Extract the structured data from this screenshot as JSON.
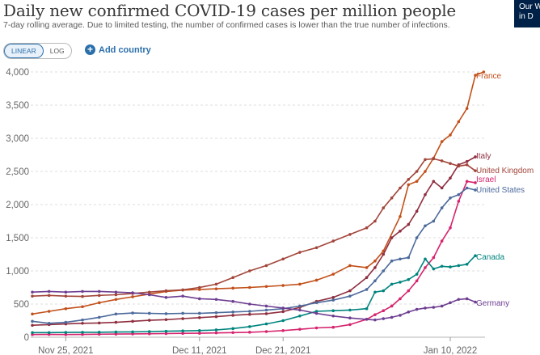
{
  "header": {
    "title": "Daily new confirmed COVID-19 cases per million people",
    "subtitle": "7-day rolling average. Due to limited testing, the number of confirmed cases is lower than the true number of infections.",
    "logo_line1": "Our W",
    "logo_line2": "in D"
  },
  "controls": {
    "linear_label": "LINEAR",
    "log_label": "LOG",
    "add_country_label": "Add country",
    "add_icon": "plus-circle-icon"
  },
  "chart_data": {
    "type": "line",
    "title": "Daily new confirmed COVID-19 cases per million people",
    "ylim": [
      0,
      4000
    ],
    "yticks": [
      0,
      500,
      1000,
      1500,
      2000,
      2500,
      3000,
      3500,
      4000
    ],
    "ytick_labels": [
      "0",
      "500",
      "1,000",
      "1,500",
      "2,000",
      "2,500",
      "3,000",
      "3,500",
      "4,000"
    ],
    "x_start": "2021-11-21",
    "x_end": "2022-01-13",
    "xticks": [
      {
        "date": "2021-11-25",
        "label": "Nov 25, 2021"
      },
      {
        "date": "2021-12-11",
        "label": "Dec 11, 2021"
      },
      {
        "date": "2021-12-21",
        "label": "Dec 21, 2021"
      },
      {
        "date": "2022-01-10",
        "label": "Jan 10, 2022"
      }
    ],
    "grid": true,
    "legend": "end-labels",
    "series": [
      {
        "name": "France",
        "color": "#c2501a",
        "points": [
          [
            "2021-11-21",
            350
          ],
          [
            "2021-11-23",
            390
          ],
          [
            "2021-11-25",
            430
          ],
          [
            "2021-11-27",
            460
          ],
          [
            "2021-11-29",
            520
          ],
          [
            "2021-12-01",
            570
          ],
          [
            "2021-12-03",
            610
          ],
          [
            "2021-12-05",
            650
          ],
          [
            "2021-12-07",
            690
          ],
          [
            "2021-12-09",
            710
          ],
          [
            "2021-12-11",
            720
          ],
          [
            "2021-12-13",
            730
          ],
          [
            "2021-12-15",
            740
          ],
          [
            "2021-12-17",
            750
          ],
          [
            "2021-12-19",
            765
          ],
          [
            "2021-12-21",
            780
          ],
          [
            "2021-12-23",
            800
          ],
          [
            "2021-12-25",
            860
          ],
          [
            "2021-12-27",
            950
          ],
          [
            "2021-12-29",
            1080
          ],
          [
            "2021-12-31",
            1050
          ],
          [
            "2022-01-01",
            1150
          ],
          [
            "2022-01-02",
            1300
          ],
          [
            "2022-01-04",
            1820
          ],
          [
            "2022-01-05",
            2300
          ],
          [
            "2022-01-06",
            2350
          ],
          [
            "2022-01-07",
            2500
          ],
          [
            "2022-01-08",
            2700
          ],
          [
            "2022-01-09",
            2950
          ],
          [
            "2022-01-10",
            3050
          ],
          [
            "2022-01-11",
            3250
          ],
          [
            "2022-01-12",
            3450
          ],
          [
            "2022-01-13",
            3950
          ],
          [
            "2022-01-14",
            4000
          ]
        ]
      },
      {
        "name": "Italy",
        "color": "#8f2e3f",
        "points": [
          [
            "2021-11-21",
            180
          ],
          [
            "2021-11-23",
            190
          ],
          [
            "2021-11-25",
            200
          ],
          [
            "2021-11-27",
            210
          ],
          [
            "2021-11-29",
            215
          ],
          [
            "2021-12-01",
            225
          ],
          [
            "2021-12-03",
            240
          ],
          [
            "2021-12-05",
            255
          ],
          [
            "2021-12-07",
            265
          ],
          [
            "2021-12-09",
            280
          ],
          [
            "2021-12-11",
            295
          ],
          [
            "2021-12-13",
            310
          ],
          [
            "2021-12-15",
            330
          ],
          [
            "2021-12-17",
            345
          ],
          [
            "2021-12-19",
            355
          ],
          [
            "2021-12-21",
            385
          ],
          [
            "2021-12-23",
            450
          ],
          [
            "2021-12-25",
            540
          ],
          [
            "2021-12-27",
            600
          ],
          [
            "2021-12-29",
            700
          ],
          [
            "2021-12-31",
            900
          ],
          [
            "2022-01-01",
            1050
          ],
          [
            "2022-01-02",
            1250
          ],
          [
            "2022-01-03",
            1500
          ],
          [
            "2022-01-04",
            1600
          ],
          [
            "2022-01-05",
            1700
          ],
          [
            "2022-01-06",
            1900
          ],
          [
            "2022-01-07",
            2150
          ],
          [
            "2022-01-08",
            2350
          ],
          [
            "2022-01-09",
            2250
          ],
          [
            "2022-01-10",
            2400
          ],
          [
            "2022-01-11",
            2600
          ],
          [
            "2022-01-12",
            2650
          ],
          [
            "2022-01-13",
            2720
          ]
        ]
      },
      {
        "name": "United Kingdom",
        "color": "#a2453a",
        "points": [
          [
            "2021-11-21",
            620
          ],
          [
            "2021-11-23",
            630
          ],
          [
            "2021-11-25",
            620
          ],
          [
            "2021-11-27",
            615
          ],
          [
            "2021-11-29",
            630
          ],
          [
            "2021-12-01",
            640
          ],
          [
            "2021-12-03",
            660
          ],
          [
            "2021-12-05",
            680
          ],
          [
            "2021-12-07",
            700
          ],
          [
            "2021-12-09",
            715
          ],
          [
            "2021-12-11",
            750
          ],
          [
            "2021-12-13",
            800
          ],
          [
            "2021-12-15",
            900
          ],
          [
            "2021-12-17",
            1000
          ],
          [
            "2021-12-19",
            1080
          ],
          [
            "2021-12-21",
            1180
          ],
          [
            "2021-12-23",
            1280
          ],
          [
            "2021-12-25",
            1350
          ],
          [
            "2021-12-27",
            1450
          ],
          [
            "2021-12-29",
            1550
          ],
          [
            "2021-12-31",
            1650
          ],
          [
            "2022-01-01",
            1750
          ],
          [
            "2022-01-02",
            1950
          ],
          [
            "2022-01-03",
            2100
          ],
          [
            "2022-01-04",
            2250
          ],
          [
            "2022-01-05",
            2380
          ],
          [
            "2022-01-06",
            2500
          ],
          [
            "2022-01-07",
            2680
          ],
          [
            "2022-01-08",
            2690
          ],
          [
            "2022-01-09",
            2660
          ],
          [
            "2022-01-10",
            2620
          ],
          [
            "2022-01-11",
            2580
          ],
          [
            "2022-01-12",
            2600
          ],
          [
            "2022-01-13",
            2510
          ]
        ]
      },
      {
        "name": "Israel",
        "color": "#d6246e",
        "points": [
          [
            "2021-11-21",
            40
          ],
          [
            "2021-11-23",
            42
          ],
          [
            "2021-11-25",
            40
          ],
          [
            "2021-11-27",
            42
          ],
          [
            "2021-11-29",
            45
          ],
          [
            "2021-12-01",
            48
          ],
          [
            "2021-12-03",
            50
          ],
          [
            "2021-12-05",
            52
          ],
          [
            "2021-12-07",
            55
          ],
          [
            "2021-12-09",
            58
          ],
          [
            "2021-12-11",
            60
          ],
          [
            "2021-12-13",
            65
          ],
          [
            "2021-12-15",
            70
          ],
          [
            "2021-12-17",
            75
          ],
          [
            "2021-12-19",
            85
          ],
          [
            "2021-12-21",
            100
          ],
          [
            "2021-12-23",
            120
          ],
          [
            "2021-12-25",
            140
          ],
          [
            "2021-12-27",
            150
          ],
          [
            "2021-12-29",
            190
          ],
          [
            "2021-12-31",
            270
          ],
          [
            "2022-01-01",
            340
          ],
          [
            "2022-01-02",
            400
          ],
          [
            "2022-01-03",
            470
          ],
          [
            "2022-01-04",
            580
          ],
          [
            "2022-01-05",
            700
          ],
          [
            "2022-01-06",
            850
          ],
          [
            "2022-01-07",
            1050
          ],
          [
            "2022-01-08",
            1200
          ],
          [
            "2022-01-09",
            1450
          ],
          [
            "2022-01-10",
            1650
          ],
          [
            "2022-01-11",
            2050
          ],
          [
            "2022-01-12",
            2350
          ],
          [
            "2022-01-13",
            2330
          ]
        ]
      },
      {
        "name": "United States",
        "color": "#4c6a9c",
        "points": [
          [
            "2021-11-21",
            240
          ],
          [
            "2021-11-23",
            210
          ],
          [
            "2021-11-25",
            225
          ],
          [
            "2021-11-27",
            260
          ],
          [
            "2021-11-29",
            300
          ],
          [
            "2021-12-01",
            350
          ],
          [
            "2021-12-03",
            365
          ],
          [
            "2021-12-05",
            360
          ],
          [
            "2021-12-07",
            355
          ],
          [
            "2021-12-09",
            360
          ],
          [
            "2021-12-11",
            360
          ],
          [
            "2021-12-13",
            370
          ],
          [
            "2021-12-15",
            380
          ],
          [
            "2021-12-17",
            390
          ],
          [
            "2021-12-19",
            410
          ],
          [
            "2021-12-21",
            430
          ],
          [
            "2021-12-23",
            470
          ],
          [
            "2021-12-25",
            520
          ],
          [
            "2021-12-27",
            560
          ],
          [
            "2021-12-29",
            620
          ],
          [
            "2021-12-31",
            720
          ],
          [
            "2022-01-01",
            850
          ],
          [
            "2022-01-02",
            1000
          ],
          [
            "2022-01-03",
            1150
          ],
          [
            "2022-01-04",
            1180
          ],
          [
            "2022-01-05",
            1200
          ],
          [
            "2022-01-06",
            1500
          ],
          [
            "2022-01-07",
            1680
          ],
          [
            "2022-01-08",
            1750
          ],
          [
            "2022-01-09",
            1950
          ],
          [
            "2022-01-10",
            2100
          ],
          [
            "2022-01-11",
            2150
          ],
          [
            "2022-01-12",
            2250
          ],
          [
            "2022-01-13",
            2220
          ]
        ]
      },
      {
        "name": "Canada",
        "color": "#00847e",
        "points": [
          [
            "2021-11-21",
            70
          ],
          [
            "2021-11-23",
            70
          ],
          [
            "2021-11-25",
            72
          ],
          [
            "2021-11-27",
            74
          ],
          [
            "2021-11-29",
            75
          ],
          [
            "2021-12-01",
            78
          ],
          [
            "2021-12-03",
            80
          ],
          [
            "2021-12-05",
            85
          ],
          [
            "2021-12-07",
            90
          ],
          [
            "2021-12-09",
            95
          ],
          [
            "2021-12-11",
            100
          ],
          [
            "2021-12-13",
            110
          ],
          [
            "2021-12-15",
            130
          ],
          [
            "2021-12-17",
            160
          ],
          [
            "2021-12-19",
            200
          ],
          [
            "2021-12-21",
            250
          ],
          [
            "2021-12-23",
            320
          ],
          [
            "2021-12-25",
            390
          ],
          [
            "2021-12-27",
            400
          ],
          [
            "2021-12-29",
            410
          ],
          [
            "2021-12-31",
            430
          ],
          [
            "2022-01-01",
            680
          ],
          [
            "2022-01-02",
            700
          ],
          [
            "2022-01-03",
            800
          ],
          [
            "2022-01-04",
            830
          ],
          [
            "2022-01-05",
            870
          ],
          [
            "2022-01-06",
            950
          ],
          [
            "2022-01-07",
            1180
          ],
          [
            "2022-01-08",
            1030
          ],
          [
            "2022-01-09",
            1070
          ],
          [
            "2022-01-10",
            1060
          ],
          [
            "2022-01-11",
            1080
          ],
          [
            "2022-01-12",
            1100
          ],
          [
            "2022-01-13",
            1230
          ]
        ]
      },
      {
        "name": "Germany",
        "color": "#6d3e91",
        "points": [
          [
            "2021-11-21",
            680
          ],
          [
            "2021-11-23",
            690
          ],
          [
            "2021-11-25",
            680
          ],
          [
            "2021-11-27",
            690
          ],
          [
            "2021-11-29",
            690
          ],
          [
            "2021-12-01",
            680
          ],
          [
            "2021-12-03",
            670
          ],
          [
            "2021-12-05",
            640
          ],
          [
            "2021-12-07",
            600
          ],
          [
            "2021-12-09",
            620
          ],
          [
            "2021-12-11",
            580
          ],
          [
            "2021-12-13",
            570
          ],
          [
            "2021-12-15",
            540
          ],
          [
            "2021-12-17",
            500
          ],
          [
            "2021-12-19",
            470
          ],
          [
            "2021-12-21",
            440
          ],
          [
            "2021-12-23",
            410
          ],
          [
            "2021-12-25",
            360
          ],
          [
            "2021-12-27",
            320
          ],
          [
            "2021-12-29",
            290
          ],
          [
            "2021-12-31",
            270
          ],
          [
            "2022-01-01",
            260
          ],
          [
            "2022-01-02",
            280
          ],
          [
            "2022-01-03",
            300
          ],
          [
            "2022-01-04",
            330
          ],
          [
            "2022-01-05",
            380
          ],
          [
            "2022-01-06",
            420
          ],
          [
            "2022-01-07",
            440
          ],
          [
            "2022-01-08",
            450
          ],
          [
            "2022-01-09",
            470
          ],
          [
            "2022-01-10",
            520
          ],
          [
            "2022-01-11",
            570
          ],
          [
            "2022-01-12",
            580
          ],
          [
            "2022-01-13",
            530
          ]
        ]
      }
    ]
  }
}
